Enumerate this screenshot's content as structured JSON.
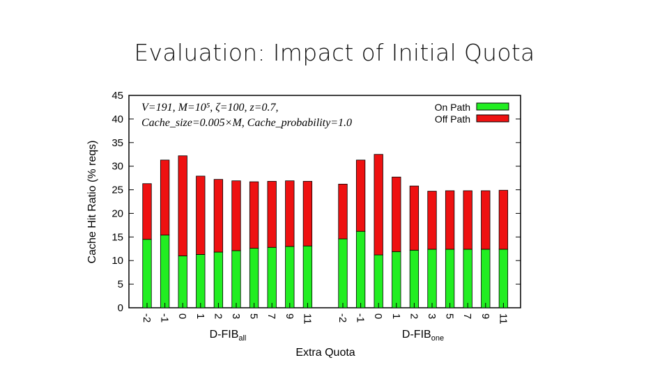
{
  "slide": {
    "title": "Evaluation: Impact of Initial Quota"
  },
  "chart_data": {
    "type": "bar",
    "stacked": true,
    "ylabel": "Cache Hit Ratio (% reqs)",
    "xlabel": "Extra Quota",
    "ylim": [
      0,
      45
    ],
    "yticks": [
      0,
      5,
      10,
      15,
      20,
      25,
      30,
      35,
      40,
      45
    ],
    "annotation": {
      "line1": "V=191, M=10⁵, ζ=100, z=0.7,",
      "line2": "Cache_size=0.005×M, Cache_probability=1.0"
    },
    "legend_position": "top-right",
    "groups": [
      {
        "name": "D-FIB",
        "subscript": "all",
        "categories": [
          "-2",
          "-1",
          "0",
          "1",
          "2",
          "3",
          "5",
          "7",
          "9",
          "11"
        ],
        "series": [
          {
            "name": "On Path",
            "color": "#22ee22",
            "values": [
              14.5,
              15.4,
              11.0,
              11.3,
              11.8,
              12.1,
              12.6,
              12.8,
              13.0,
              13.1
            ]
          },
          {
            "name": "Off Path",
            "color": "#ee1111",
            "values": [
              11.8,
              15.9,
              21.2,
              16.6,
              15.4,
              14.8,
              14.1,
              14.0,
              13.9,
              13.7
            ]
          }
        ]
      },
      {
        "name": "D-FIB",
        "subscript": "one",
        "categories": [
          "-2",
          "-1",
          "0",
          "1",
          "2",
          "3",
          "5",
          "7",
          "9",
          "11"
        ],
        "series": [
          {
            "name": "On Path",
            "color": "#22ee22",
            "values": [
              14.6,
              16.2,
              11.2,
              11.9,
              12.2,
              12.4,
              12.4,
              12.4,
              12.4,
              12.4
            ]
          },
          {
            "name": "Off Path",
            "color": "#ee1111",
            "values": [
              11.6,
              15.1,
              21.3,
              15.8,
              13.6,
              12.3,
              12.4,
              12.4,
              12.4,
              12.5
            ]
          }
        ]
      }
    ]
  }
}
